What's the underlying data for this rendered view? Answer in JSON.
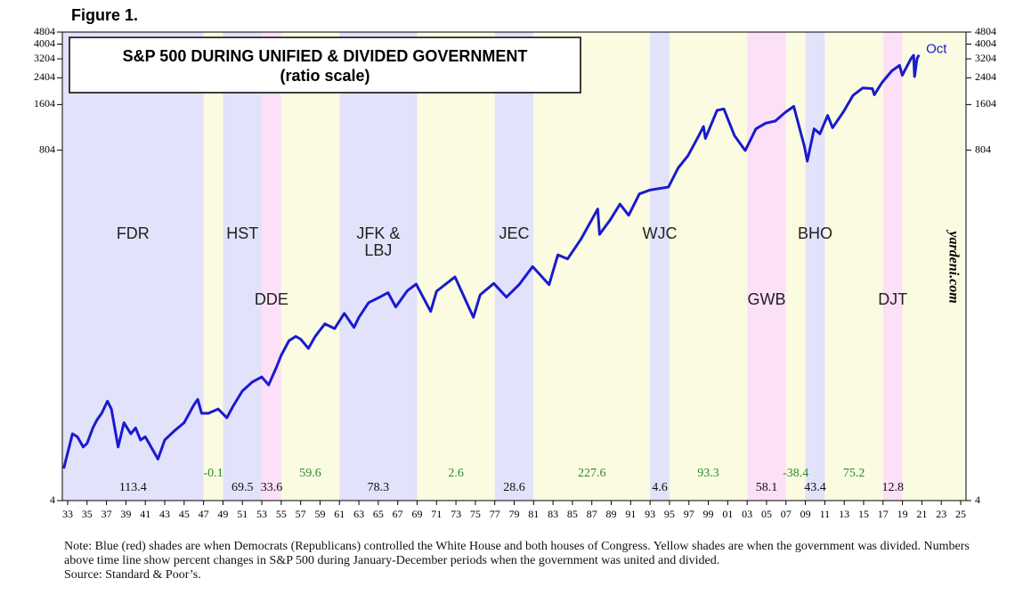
{
  "figure_label": "Figure 1.",
  "note": "Note: Blue (red) shades are when Democrats (Republicans) controlled the White House and both houses of Congress. Yellow shades are when the government was divided. Numbers above time line show percent changes in S&P 500 during January-December periods when the government was united and divided.",
  "source": "Source: Standard & Poor’s.",
  "chart_data": {
    "type": "line",
    "title": "S&P 500 DURING UNIFIED & DIVIDED GOVERNMENT",
    "subtitle": "(ratio scale)",
    "watermark": "yardeni.com",
    "end_label": "Oct",
    "log_scale": true,
    "color": "#1a1acc",
    "xlim": [
      1932.45,
      2025.55
    ],
    "ylim": [
      4,
      4804
    ],
    "yticks": [
      4,
      804,
      1604,
      2404,
      3204,
      4004,
      4804
    ],
    "xticks": [
      {
        "value": 1933,
        "label": "33"
      },
      {
        "value": 1935,
        "label": "35"
      },
      {
        "value": 1937,
        "label": "37"
      },
      {
        "value": 1939,
        "label": "39"
      },
      {
        "value": 1941,
        "label": "41"
      },
      {
        "value": 1943,
        "label": "43"
      },
      {
        "value": 1945,
        "label": "45"
      },
      {
        "value": 1947,
        "label": "47"
      },
      {
        "value": 1949,
        "label": "49"
      },
      {
        "value": 1951,
        "label": "51"
      },
      {
        "value": 1953,
        "label": "53"
      },
      {
        "value": 1955,
        "label": "55"
      },
      {
        "value": 1957,
        "label": "57"
      },
      {
        "value": 1959,
        "label": "59"
      },
      {
        "value": 1961,
        "label": "61"
      },
      {
        "value": 1963,
        "label": "63"
      },
      {
        "value": 1965,
        "label": "65"
      },
      {
        "value": 1967,
        "label": "67"
      },
      {
        "value": 1969,
        "label": "69"
      },
      {
        "value": 1971,
        "label": "71"
      },
      {
        "value": 1973,
        "label": "73"
      },
      {
        "value": 1975,
        "label": "75"
      },
      {
        "value": 1977,
        "label": "77"
      },
      {
        "value": 1979,
        "label": "79"
      },
      {
        "value": 1981,
        "label": "81"
      },
      {
        "value": 1983,
        "label": "83"
      },
      {
        "value": 1985,
        "label": "85"
      },
      {
        "value": 1987,
        "label": "87"
      },
      {
        "value": 1989,
        "label": "89"
      },
      {
        "value": 1991,
        "label": "91"
      },
      {
        "value": 1993,
        "label": "93"
      },
      {
        "value": 1995,
        "label": "95"
      },
      {
        "value": 1997,
        "label": "97"
      },
      {
        "value": 1999,
        "label": "99"
      },
      {
        "value": 2001,
        "label": "01"
      },
      {
        "value": 2003,
        "label": "03"
      },
      {
        "value": 2005,
        "label": "05"
      },
      {
        "value": 2007,
        "label": "07"
      },
      {
        "value": 2009,
        "label": "09"
      },
      {
        "value": 2011,
        "label": "11"
      },
      {
        "value": 2013,
        "label": "13"
      },
      {
        "value": 2015,
        "label": "15"
      },
      {
        "value": 2017,
        "label": "17"
      },
      {
        "value": 2019,
        "label": "19"
      },
      {
        "value": 2021,
        "label": "21"
      },
      {
        "value": 2023,
        "label": "23"
      },
      {
        "value": 2025,
        "label": "25"
      }
    ],
    "shade_colors": {
      "D": "#e2e2fa",
      "R": "#fce0f8",
      "divided": "#fbfbe2"
    },
    "change_colors": {
      "united": "#111111",
      "divided": "#2a8a2a"
    },
    "regions": [
      {
        "start": 1932.45,
        "end": 1947,
        "control": "D",
        "label": "FDR",
        "change": 113.4
      },
      {
        "start": 1947,
        "end": 1949,
        "control": "divided",
        "change": -0.1
      },
      {
        "start": 1949,
        "end": 1953,
        "control": "D",
        "label": "HST",
        "change": 69.5
      },
      {
        "start": 1953,
        "end": 1955,
        "control": "R",
        "label": "DDE",
        "change": 33.6
      },
      {
        "start": 1955,
        "end": 1961,
        "control": "divided",
        "change": 59.6
      },
      {
        "start": 1961,
        "end": 1969,
        "control": "D",
        "label": "JFK & LBJ",
        "change": 78.3
      },
      {
        "start": 1969,
        "end": 1977,
        "control": "divided",
        "change": 2.6
      },
      {
        "start": 1977,
        "end": 1981,
        "control": "D",
        "label": "JEC",
        "change": 28.6
      },
      {
        "start": 1981,
        "end": 1993,
        "control": "divided",
        "change": 227.6
      },
      {
        "start": 1993,
        "end": 1995,
        "control": "D",
        "label": "WJC",
        "change": 4.6
      },
      {
        "start": 1995,
        "end": 2003,
        "control": "divided",
        "change": 93.3
      },
      {
        "start": 2003,
        "end": 2007,
        "control": "R",
        "label": "GWB",
        "change": 58.1
      },
      {
        "start": 2007,
        "end": 2009,
        "control": "divided",
        "change": -38.4
      },
      {
        "start": 2009,
        "end": 2011,
        "control": "D",
        "label": "BHO",
        "change": 43.4
      },
      {
        "start": 2011,
        "end": 2017,
        "control": "divided",
        "change": 75.2
      },
      {
        "start": 2017,
        "end": 2019,
        "control": "R",
        "label": "DJT",
        "change": 12.8
      },
      {
        "start": 2019,
        "end": 2025.55,
        "control": "divided"
      }
    ],
    "x": [
      1932.6,
      1933.5,
      1934.0,
      1934.6,
      1935.0,
      1935.6,
      1936.0,
      1936.5,
      1937.1,
      1937.5,
      1938.2,
      1938.8,
      1939.5,
      1940.0,
      1940.5,
      1941.0,
      1942.3,
      1943.0,
      1944.0,
      1945.0,
      1946.0,
      1946.4,
      1946.8,
      1947.5,
      1948.5,
      1949.4,
      1950.0,
      1951.0,
      1952.0,
      1953.0,
      1953.7,
      1954.5,
      1955.0,
      1955.8,
      1956.5,
      1957.0,
      1957.8,
      1958.5,
      1959.5,
      1960.5,
      1961.5,
      1962.5,
      1963.0,
      1964.0,
      1965.0,
      1966.0,
      1966.8,
      1968.0,
      1968.9,
      1970.4,
      1971.0,
      1972.9,
      1974.8,
      1975.5,
      1976.9,
      1978.2,
      1979.5,
      1980.9,
      1982.6,
      1983.5,
      1984.5,
      1985.9,
      1987.6,
      1987.8,
      1988.9,
      1989.9,
      1990.8,
      1991.9,
      1993.0,
      1994.9,
      1995.9,
      1996.9,
      1997.9,
      1998.5,
      1998.7,
      1999.9,
      2000.6,
      2001.7,
      2002.8,
      2003.9,
      2004.9,
      2005.9,
      2006.9,
      2007.8,
      2008.9,
      2009.2,
      2009.9,
      2010.5,
      2011.3,
      2011.8,
      2012.9,
      2013.9,
      2014.9,
      2015.9,
      2016.1,
      2016.9,
      2017.9,
      2018.7,
      2018.98,
      2019.9,
      2020.15,
      2020.25,
      2020.5,
      2020.7
    ],
    "values": [
      6.5,
      11,
      10.5,
      9,
      9.5,
      12,
      13.5,
      15,
      18,
      16,
      9,
      13,
      11,
      12,
      10,
      10.5,
      7.5,
      10,
      11.5,
      13,
      17,
      18.5,
      15,
      15,
      16,
      14,
      16.5,
      21,
      24,
      26,
      23,
      30,
      36,
      45,
      48,
      46,
      40,
      48,
      58,
      54,
      68,
      55,
      64,
      80,
      86,
      93,
      75,
      96,
      106,
      70,
      95,
      118,
      64,
      90,
      107,
      87,
      105,
      138,
      105,
      165,
      155,
      210,
      330,
      225,
      280,
      355,
      300,
      415,
      440,
      460,
      615,
      740,
      970,
      1150,
      960,
      1470,
      1500,
      1000,
      800,
      1110,
      1210,
      1250,
      1420,
      1560,
      850,
      680,
      1110,
      1030,
      1360,
      1130,
      1430,
      1840,
      2060,
      2040,
      1860,
      2240,
      2670,
      2900,
      2500,
      3230,
      3380,
      2450,
      3200,
      3400
    ]
  }
}
